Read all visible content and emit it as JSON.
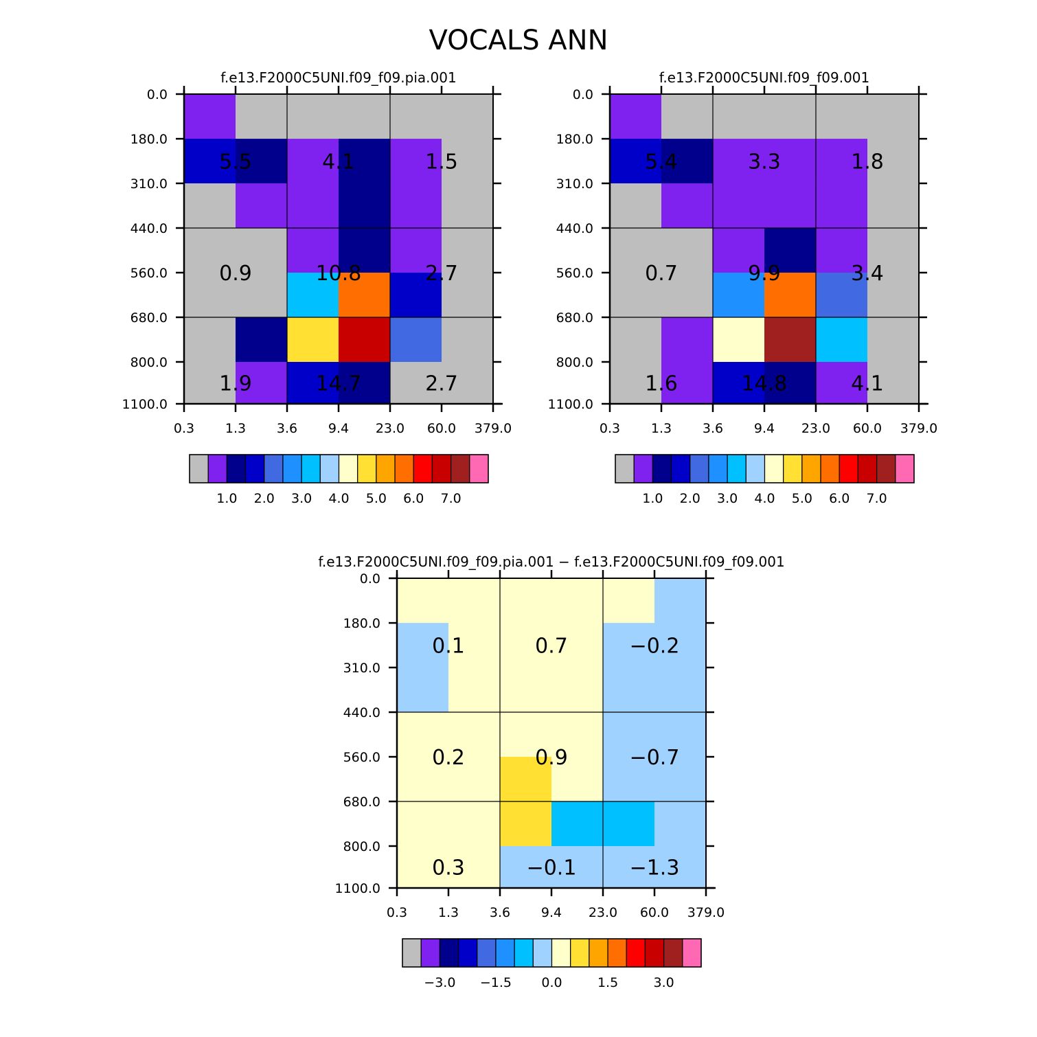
{
  "page_title": "VOCALS ANN",
  "chart_data": [
    {
      "type": "heatmap",
      "title": "f.e13.F2000C5UNI.f09_f09.pia.001",
      "x_tick_labels": [
        "0.3",
        "1.3",
        "3.6",
        "9.4",
        "23.0",
        "60.0",
        "379.0"
      ],
      "y_tick_labels": [
        "0.0",
        "180.0",
        "310.0",
        "440.0",
        "560.0",
        "680.0",
        "800.0",
        "1100.0"
      ],
      "cell_colors": [
        [
          "#7f22ef",
          "#bebebe",
          "#bebebe",
          "#bebebe",
          "#bebebe",
          "#bebebe"
        ],
        [
          "#0000c8",
          "#00008c",
          "#7f22ef",
          "#00008c",
          "#7f22ef",
          "#bebebe"
        ],
        [
          "#bebebe",
          "#7f22ef",
          "#7f22ef",
          "#00008c",
          "#7f22ef",
          "#bebebe"
        ],
        [
          "#bebebe",
          "#bebebe",
          "#7f22ef",
          "#00008c",
          "#7f22ef",
          "#bebebe"
        ],
        [
          "#bebebe",
          "#bebebe",
          "#00c0ff",
          "#ff6e00",
          "#0000c8",
          "#bebebe"
        ],
        [
          "#bebebe",
          "#00008c",
          "#ffe033",
          "#c80000",
          "#4169e1",
          "#bebebe"
        ],
        [
          "#bebebe",
          "#7f22ef",
          "#0000c8",
          "#00008c",
          "#bebebe",
          "#bebebe"
        ]
      ],
      "group_values": [
        [
          "5.5",
          "4.1",
          "1.5"
        ],
        [
          "0.9",
          "10.8",
          "2.7"
        ],
        [
          "1.9",
          "14.7",
          "2.7"
        ]
      ],
      "colorbar": {
        "colors": [
          "#bebebe",
          "#7f22ef",
          "#00008c",
          "#0000c8",
          "#4169e1",
          "#1e90ff",
          "#00c0ff",
          "#a0d2ff",
          "#ffffcc",
          "#ffe033",
          "#ffa500",
          "#ff6e00",
          "#ff0000",
          "#c80000",
          "#a02020",
          "#ff69b4"
        ],
        "labels": [
          "1.0",
          "2.0",
          "3.0",
          "4.0",
          "5.0",
          "6.0",
          "7.0"
        ],
        "label_boundary_index": [
          2,
          4,
          6,
          8,
          10,
          12,
          14
        ]
      }
    },
    {
      "type": "heatmap",
      "title": "f.e13.F2000C5UNI.f09_f09.001",
      "x_tick_labels": [
        "0.3",
        "1.3",
        "3.6",
        "9.4",
        "23.0",
        "60.0",
        "379.0"
      ],
      "y_tick_labels": [
        "0.0",
        "180.0",
        "310.0",
        "440.0",
        "560.0",
        "680.0",
        "800.0",
        "1100.0"
      ],
      "cell_colors": [
        [
          "#7f22ef",
          "#bebebe",
          "#bebebe",
          "#bebebe",
          "#bebebe",
          "#bebebe"
        ],
        [
          "#0000c8",
          "#00008c",
          "#7f22ef",
          "#7f22ef",
          "#7f22ef",
          "#bebebe"
        ],
        [
          "#bebebe",
          "#7f22ef",
          "#7f22ef",
          "#7f22ef",
          "#7f22ef",
          "#bebebe"
        ],
        [
          "#bebebe",
          "#bebebe",
          "#7f22ef",
          "#00008c",
          "#7f22ef",
          "#bebebe"
        ],
        [
          "#bebebe",
          "#bebebe",
          "#1e90ff",
          "#ff6e00",
          "#4169e1",
          "#bebebe"
        ],
        [
          "#bebebe",
          "#7f22ef",
          "#ffffcc",
          "#a02020",
          "#00c0ff",
          "#bebebe"
        ],
        [
          "#bebebe",
          "#7f22ef",
          "#0000c8",
          "#00008c",
          "#7f22ef",
          "#bebebe"
        ]
      ],
      "group_values": [
        [
          "5.4",
          "3.3",
          "1.8"
        ],
        [
          "0.7",
          "9.9",
          "3.4"
        ],
        [
          "1.6",
          "14.8",
          "4.1"
        ]
      ],
      "colorbar": {
        "colors": [
          "#bebebe",
          "#7f22ef",
          "#00008c",
          "#0000c8",
          "#4169e1",
          "#1e90ff",
          "#00c0ff",
          "#a0d2ff",
          "#ffffcc",
          "#ffe033",
          "#ffa500",
          "#ff6e00",
          "#ff0000",
          "#c80000",
          "#a02020",
          "#ff69b4"
        ],
        "labels": [
          "1.0",
          "2.0",
          "3.0",
          "4.0",
          "5.0",
          "6.0",
          "7.0"
        ],
        "label_boundary_index": [
          2,
          4,
          6,
          8,
          10,
          12,
          14
        ]
      }
    },
    {
      "type": "heatmap",
      "title": "f.e13.F2000C5UNI.f09_f09.pia.001 − f.e13.F2000C5UNI.f09_f09.001",
      "x_tick_labels": [
        "0.3",
        "1.3",
        "3.6",
        "9.4",
        "23.0",
        "60.0",
        "379.0"
      ],
      "y_tick_labels": [
        "0.0",
        "180.0",
        "310.0",
        "440.0",
        "560.0",
        "680.0",
        "800.0",
        "1100.0"
      ],
      "cell_colors": [
        [
          "#ffffcc",
          "#ffffcc",
          "#ffffcc",
          "#ffffcc",
          "#ffffcc",
          "#a0d2ff"
        ],
        [
          "#a0d2ff",
          "#ffffcc",
          "#ffffcc",
          "#ffffcc",
          "#a0d2ff",
          "#a0d2ff"
        ],
        [
          "#a0d2ff",
          "#ffffcc",
          "#ffffcc",
          "#ffffcc",
          "#a0d2ff",
          "#a0d2ff"
        ],
        [
          "#ffffcc",
          "#ffffcc",
          "#ffffcc",
          "#ffffcc",
          "#a0d2ff",
          "#a0d2ff"
        ],
        [
          "#ffffcc",
          "#ffffcc",
          "#ffe033",
          "#ffffcc",
          "#a0d2ff",
          "#a0d2ff"
        ],
        [
          "#ffffcc",
          "#ffffcc",
          "#ffe033",
          "#00c0ff",
          "#00c0ff",
          "#a0d2ff"
        ],
        [
          "#ffffcc",
          "#ffffcc",
          "#a0d2ff",
          "#a0d2ff",
          "#a0d2ff",
          "#a0d2ff"
        ]
      ],
      "group_values": [
        [
          "0.1",
          "0.7",
          "−0.2"
        ],
        [
          "0.2",
          "0.9",
          "−0.7"
        ],
        [
          "0.3",
          "−0.1",
          "−1.3"
        ]
      ],
      "colorbar": {
        "colors": [
          "#bebebe",
          "#7f22ef",
          "#00008c",
          "#0000c8",
          "#4169e1",
          "#1e90ff",
          "#00c0ff",
          "#a0d2ff",
          "#ffffcc",
          "#ffe033",
          "#ffa500",
          "#ff6e00",
          "#ff0000",
          "#c80000",
          "#a02020",
          "#ff69b4"
        ],
        "labels": [
          "−3.0",
          "−1.5",
          "0.0",
          "1.5",
          "3.0"
        ],
        "label_boundary_index": [
          2,
          5,
          8,
          11,
          14
        ]
      }
    }
  ]
}
